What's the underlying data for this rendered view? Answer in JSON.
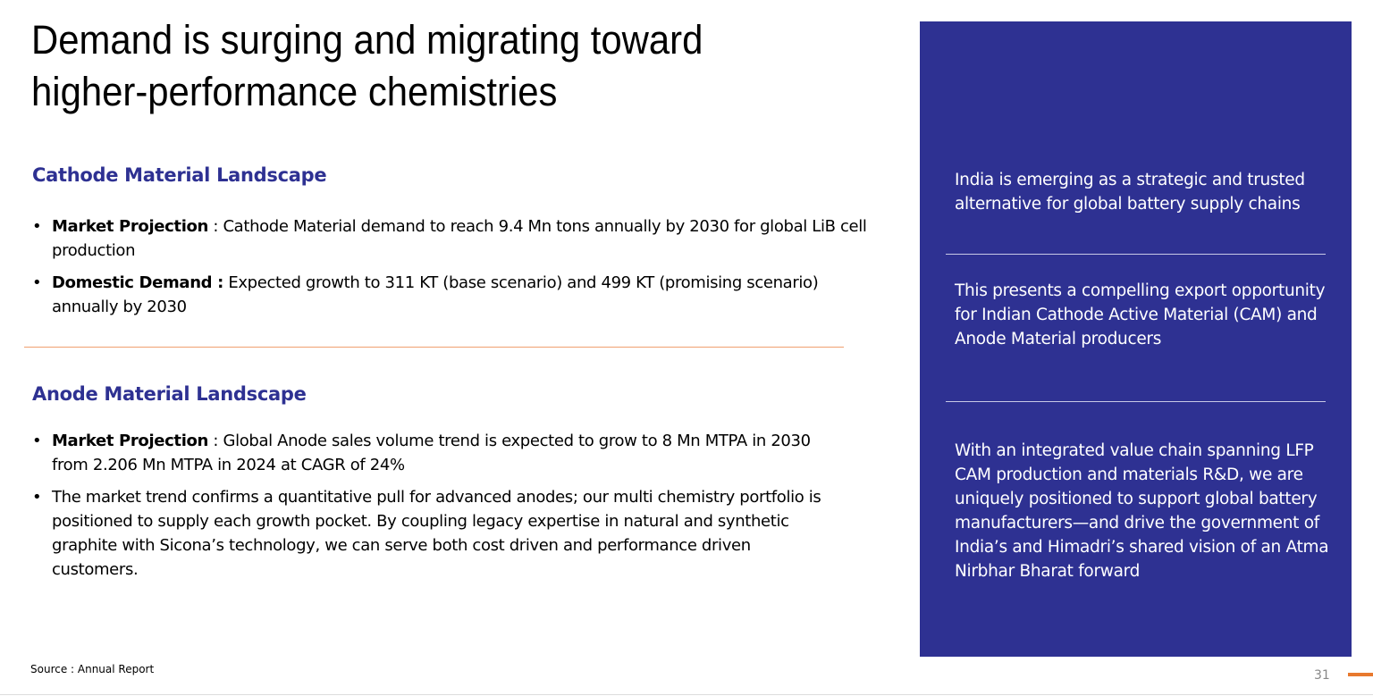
{
  "slide": {
    "title_line1": "Demand is surging and migrating toward",
    "title_line2": "higher-performance chemistries",
    "cathode": {
      "heading": "Cathode Material Landscape",
      "bullets": [
        {
          "label": "Market Projection",
          "separator": " : ",
          "text": "Cathode Material demand to reach 9.4 Mn tons annually by 2030 for global LiB cell production"
        },
        {
          "label": "Domestic Demand :",
          "separator": " ",
          "text": "Expected growth to 311 KT (base scenario) and 499 KT (promising scenario) annually by 2030"
        }
      ]
    },
    "anode": {
      "heading": "Anode Material Landscape",
      "bullets": [
        {
          "label": "Market Projection",
          "separator": " : ",
          "text": "Global Anode sales volume trend  is expected to grow to 8 Mn MTPA in 2030 from 2.206 Mn MTPA in 2024 at CAGR of 24%"
        },
        {
          "text": "The market trend confirms a quantitative pull for advanced anodes; our multi chemistry portfolio is positioned to supply each growth pocket. By coupling legacy expertise in natural and synthetic graphite with Sicona’s technology, we can serve both cost driven and performance driven customers."
        }
      ]
    },
    "bullet_glyph": "•",
    "source": "Source : Annual Report",
    "page_number": "31",
    "panel": {
      "statements": [
        "India is emerging as a strategic and trusted alternative for global battery supply chains",
        "This presents a compelling export opportunity for Indian Cathode Active Material (CAM) and Anode Material producers",
        "With an integrated value chain spanning LFP CAM production and materials R&D, we are uniquely positioned to support global battery manufacturers—and drive the government of India’s and Himadri’s shared vision of an Atma Nirbhar Bharat forward"
      ]
    },
    "colors": {
      "heading_blue": "#2e3192",
      "panel_background": "#2e3192",
      "divider_orange": "#f0a070",
      "accent_orange": "#e8792e"
    }
  }
}
